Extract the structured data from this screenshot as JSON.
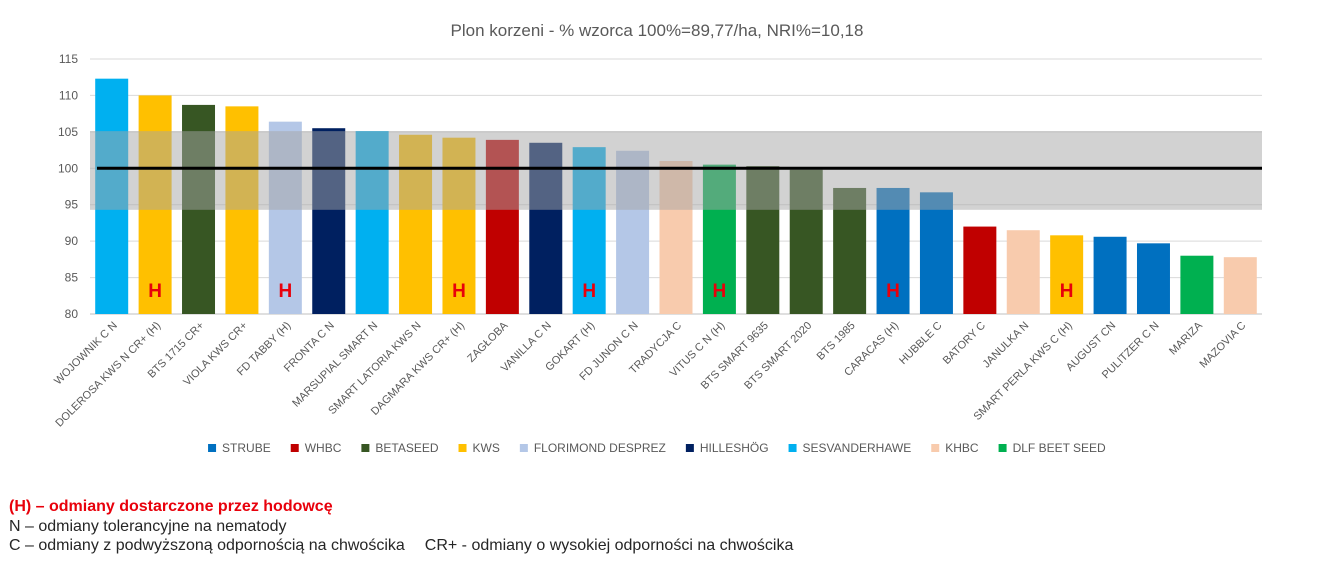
{
  "chart_data": {
    "type": "bar",
    "title": "Plon korzeni - % wzorca 100%=89,77/ha, NRI%=10,18",
    "xlabel": "",
    "ylabel": "",
    "ylim": [
      80,
      115
    ],
    "yticks": [
      80,
      85,
      90,
      95,
      100,
      105,
      110,
      115
    ],
    "grid": true,
    "legend_position": "bottom",
    "reference_line": 100,
    "band": [
      94.3,
      105.1
    ],
    "categories": [
      "WOJOWNIK C N",
      "DOLEROSA KWS N CR+ (H)",
      "BTS 1715 CR+",
      "VIOLA KWS CR+",
      "FD TABBY  (H)",
      "FRONTA C N",
      "MARSUPIAL SMART N",
      "SMART LATORIA KWS N",
      "DAGMARA KWS CR+ (H)",
      "ZAGŁOBA",
      "VANILLA C N",
      "GOKART (H)",
      "FD JUNON C N",
      "TRADYCJA C",
      "VITUS C N  (H)",
      "BTS SMART 9635",
      "BTS SMART 2020",
      "BTS 1985",
      "CARACAS (H)",
      "HUBBLE C",
      "BATORY C",
      "JANULKA N",
      "SMART PERLA KWS C (H)",
      "AUGUST CN",
      "PULITZER C N",
      "MARIZA",
      "MAZOVIA C"
    ],
    "values": [
      112.3,
      110.0,
      108.7,
      108.5,
      106.4,
      105.5,
      105.1,
      104.6,
      104.2,
      103.9,
      103.5,
      102.9,
      102.4,
      101.0,
      100.5,
      100.3,
      99.8,
      97.3,
      97.3,
      96.7,
      92.0,
      91.5,
      90.8,
      90.6,
      89.7,
      88.0,
      87.8
    ],
    "companies": [
      "SESVANDERHAWE",
      "KWS",
      "BETASEED",
      "KWS",
      "FLORIMOND DESPREZ",
      "HILLESHÖG",
      "SESVANDERHAWE",
      "KWS",
      "KWS",
      "WHBC",
      "HILLESHÖG",
      "SESVANDERHAWE",
      "FLORIMOND DESPREZ",
      "KHBC",
      "DLF BEET SEED",
      "BETASEED",
      "BETASEED",
      "BETASEED",
      "STRUBE",
      "STRUBE",
      "WHBC",
      "KHBC",
      "KWS",
      "STRUBE",
      "STRUBE",
      "DLF BEET SEED",
      "KHBC"
    ],
    "marker_text": "H",
    "marked": [
      false,
      true,
      false,
      false,
      true,
      false,
      false,
      false,
      true,
      false,
      false,
      true,
      false,
      false,
      true,
      false,
      false,
      false,
      true,
      false,
      false,
      false,
      true,
      false,
      false,
      false,
      false
    ],
    "legend": [
      {
        "name": "STRUBE",
        "color": "#0070c0"
      },
      {
        "name": "WHBC",
        "color": "#c00000"
      },
      {
        "name": "BETASEED",
        "color": "#375623"
      },
      {
        "name": "KWS",
        "color": "#ffc000"
      },
      {
        "name": "FLORIMOND DESPREZ",
        "color": "#b4c7e7"
      },
      {
        "name": "HILLESHÖG",
        "color": "#002060"
      },
      {
        "name": "SESVANDERHAWE",
        "color": "#00b0f0"
      },
      {
        "name": "KHBC",
        "color": "#f8cbad"
      },
      {
        "name": "DLF BEET SEED",
        "color": "#00b050"
      }
    ]
  },
  "notes": {
    "line1": "(H) – odmiany dostarczone przez hodowcę",
    "line2": "N – odmiany tolerancyjne na nematody",
    "line3a": "C – odmiany z podwyższoną odpornością na chwościka",
    "line3b": "CR+ - odmiany o wysokiej odporności na chwościka"
  }
}
